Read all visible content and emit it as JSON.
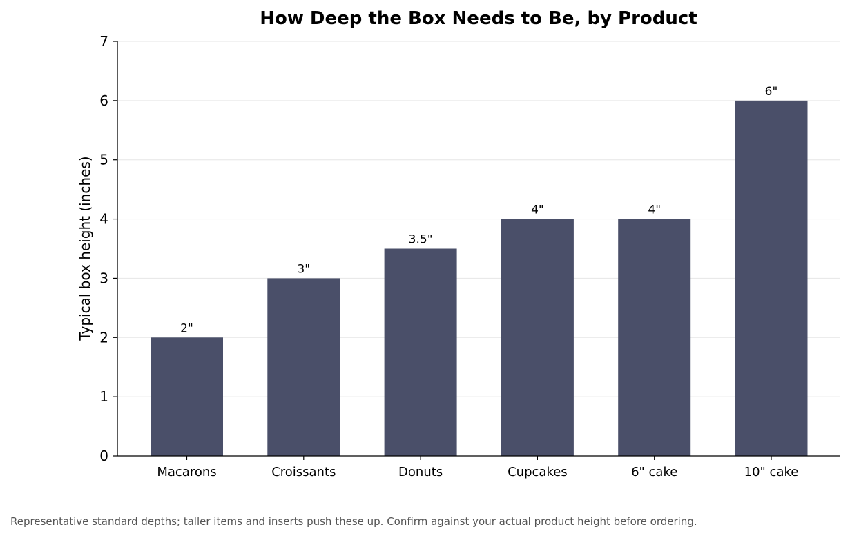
{
  "colors": {
    "bar": "#4a4f69",
    "grid": "#e6e6e6",
    "axis": "#000000",
    "footnote": "#555555"
  },
  "chart_data": {
    "type": "bar",
    "title": "How Deep the Box Needs to Be, by Product",
    "xlabel": "",
    "ylabel": "Typical box height (inches)",
    "categories": [
      "Macarons",
      "Croissants",
      "Donuts",
      "Cupcakes",
      "6\" cake",
      "10\" cake"
    ],
    "values": [
      2,
      3,
      3.5,
      4,
      4,
      6
    ],
    "data_labels": [
      "2\"",
      "3\"",
      "3.5\"",
      "4\"",
      "4\"",
      "6\""
    ],
    "ylim": [
      0,
      7
    ],
    "yticks": [
      0,
      1,
      2,
      3,
      4,
      5,
      6,
      7
    ],
    "grid": "horizontal",
    "legend": "none"
  },
  "footnote": "Representative standard depths; taller items and inserts push these up. Confirm against your actual product height before ordering."
}
